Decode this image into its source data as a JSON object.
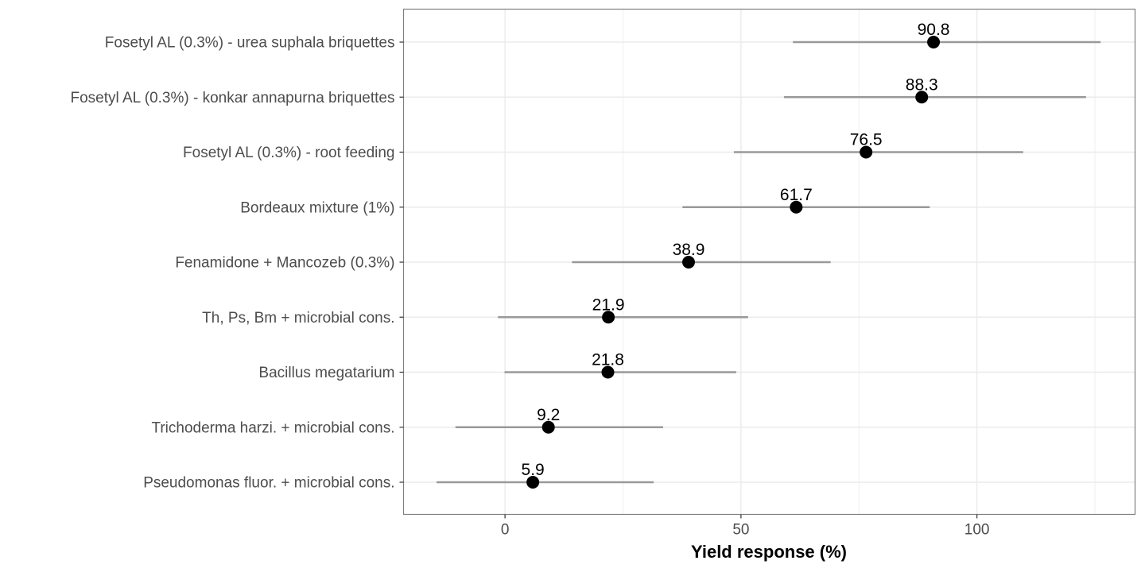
{
  "chart_data": {
    "type": "scatter",
    "title": "",
    "xlabel": "Yield response (%)",
    "ylabel": "",
    "xlim": [
      -21.5,
      133.5
    ],
    "xticks": [
      0,
      50,
      100
    ],
    "grid": true,
    "legend": "none",
    "colors": {
      "point": "#000000",
      "errorbar": "#999999",
      "grid": "#ebebeb",
      "panel_border": "#7f7f7f",
      "tick_label": "#4d4d4d"
    },
    "categories": [
      "Fosetyl AL (0.3%) - urea suphala briquettes",
      "Fosetyl AL (0.3%) - konkar annapurna briquettes",
      "Fosetyl AL (0.3%) - root feeding",
      "Bordeaux mixture (1%)",
      "Fenamidone + Mancozeb (0.3%)",
      "Th, Ps, Bm + microbial cons.",
      "Bacillus megatarium",
      "Trichoderma harzi. + microbial cons.",
      "Pseudomonas fluor. + microbial cons."
    ],
    "values": [
      90.8,
      88.3,
      76.5,
      61.7,
      38.9,
      21.9,
      21.8,
      9.2,
      5.9
    ],
    "value_labels": [
      "90.8",
      "88.3",
      "76.5",
      "61.7",
      "38.9",
      "21.9",
      "21.8",
      "9.2",
      "5.9"
    ],
    "lower": [
      61.0,
      59.1,
      48.5,
      37.6,
      14.2,
      -1.5,
      -0.1,
      -10.5,
      -14.5
    ],
    "upper": [
      126.2,
      123.1,
      109.8,
      90.0,
      69.0,
      51.5,
      49.0,
      33.5,
      31.5
    ]
  }
}
